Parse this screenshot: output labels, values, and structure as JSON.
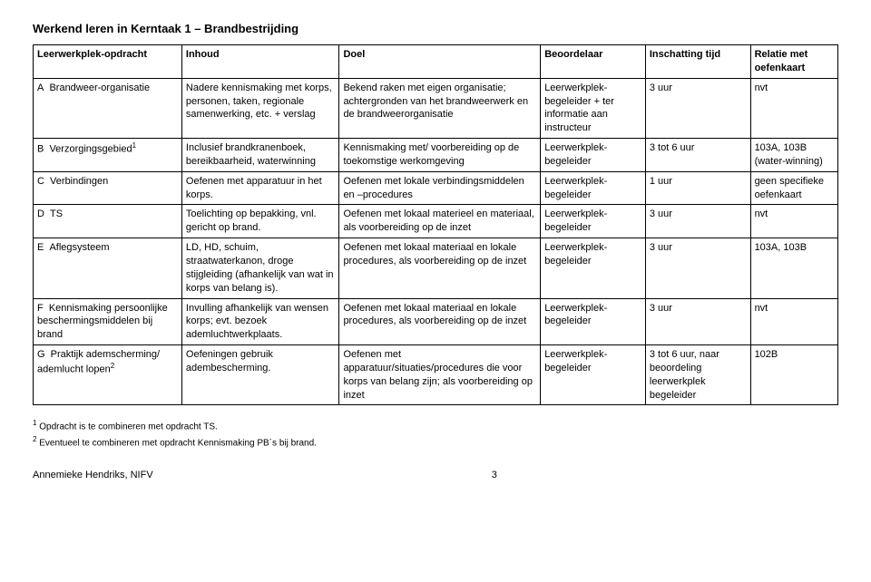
{
  "title": "Werkend leren in Kerntaak 1 – Brandbestrijding",
  "headers": {
    "opdracht": "Leerwerkplek-opdracht",
    "inhoud": "Inhoud",
    "doel": "Doel",
    "beoordelaar": "Beoordelaar",
    "tijd": "Inschatting tijd",
    "relatie": "Relatie met oefenkaart"
  },
  "rows": [
    {
      "letter": "A",
      "opdracht": "Brandweer-organisatie",
      "inhoud": "Nadere kennismaking met korps, personen, taken, regionale samenwerking, etc. + verslag",
      "doel": "Bekend raken met eigen organisatie; achtergronden van het brandweerwerk en de brandweerorganisatie",
      "beoordelaar": "Leerwerkplek-begeleider + ter informatie aan instructeur",
      "tijd": "3 uur",
      "relatie": "nvt"
    },
    {
      "letter": "B",
      "opdracht": "Verzorgingsgebied",
      "opdracht_sup": "1",
      "inhoud": "Inclusief brandkranenboek, bereikbaarheid, waterwinning",
      "doel": "Kennismaking met/ voorbereiding op de toekomstige werkomgeving",
      "beoordelaar": "Leerwerkplek-begeleider",
      "tijd": "3 tot 6 uur",
      "relatie": "103A, 103B (water-winning)"
    },
    {
      "letter": "C",
      "opdracht": "Verbindingen",
      "inhoud": "Oefenen met apparatuur in het korps.",
      "doel": "Oefenen met lokale verbindingsmiddelen en –procedures",
      "beoordelaar": "Leerwerkplek-begeleider",
      "tijd": "1 uur",
      "relatie": "geen specifieke oefenkaart"
    },
    {
      "letter": "D",
      "opdracht": "TS",
      "inhoud": "Toelichting op bepakking, vnl. gericht op brand.",
      "doel": "Oefenen met lokaal materieel en materiaal, als voorbereiding op de inzet",
      "beoordelaar": "Leerwerkplek-begeleider",
      "tijd": "3 uur",
      "relatie": "nvt"
    },
    {
      "letter": "E",
      "opdracht": "Aflegsysteem",
      "inhoud": "LD, HD, schuim, straatwaterkanon, droge stijgleiding (afhankelijk van wat in korps van belang is).",
      "doel": "Oefenen met lokaal materiaal en lokale procedures, als voorbereiding op de inzet",
      "beoordelaar": "Leerwerkplek-begeleider",
      "tijd": "3 uur",
      "relatie": "103A, 103B"
    },
    {
      "letter": "F",
      "opdracht": "Kennismaking persoonlijke beschermingsmiddelen bij brand",
      "inhoud": "Invulling afhankelijk van wensen korps; evt. bezoek ademluchtwerkplaats.",
      "doel": "Oefenen met lokaal materiaal en lokale procedures, als voorbereiding op de inzet",
      "beoordelaar": "Leerwerkplek-begeleider",
      "tijd": "3 uur",
      "relatie": "nvt"
    },
    {
      "letter": "G",
      "opdracht": "Praktijk ademscherming/ ademlucht lopen",
      "opdracht_sup": "2",
      "inhoud": "Oefeningen gebruik adembescherming.",
      "doel": "Oefenen met apparatuur/situaties/procedures die voor korps van belang zijn; als voorbereiding op inzet",
      "beoordelaar": "Leerwerkplek-begeleider",
      "tijd": "3 tot 6 uur, naar beoordeling leerwerkplek begeleider",
      "relatie": "102B"
    }
  ],
  "footnotes": {
    "f1_num": "1",
    "f1": "Opdracht is te combineren met opdracht TS.",
    "f2_num": "2",
    "f2": "Eventueel te combineren met opdracht Kennismaking PB´s bij brand."
  },
  "footer": {
    "author": "Annemieke Hendriks, NIFV",
    "page": "3"
  }
}
